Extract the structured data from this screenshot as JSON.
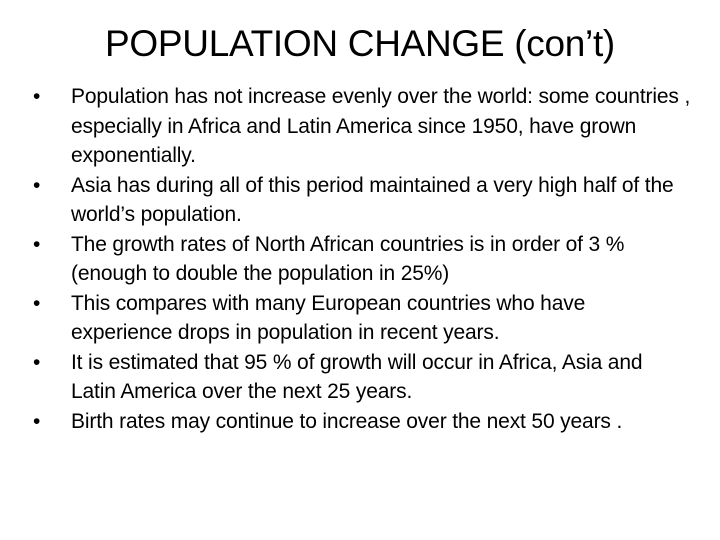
{
  "slide": {
    "title": "POPULATION CHANGE (con’t)",
    "bullet_glyph": "•",
    "bullets": [
      "Population has not increase evenly over the world: some countries , especially in Africa and Latin America since 1950, have grown exponentially.",
      "Asia has during all of this period maintained a very high half of the world’s population.",
      "The growth rates of North African countries is in order of 3 % (enough to double the population in 25%)",
      "This compares with many European  countries who have experience drops in population in recent years.",
      "It is estimated that 95 % of growth will occur in Africa, Asia and Latin America over the next 25 years.",
      "Birth rates may continue to increase over the next  50 years ."
    ]
  }
}
